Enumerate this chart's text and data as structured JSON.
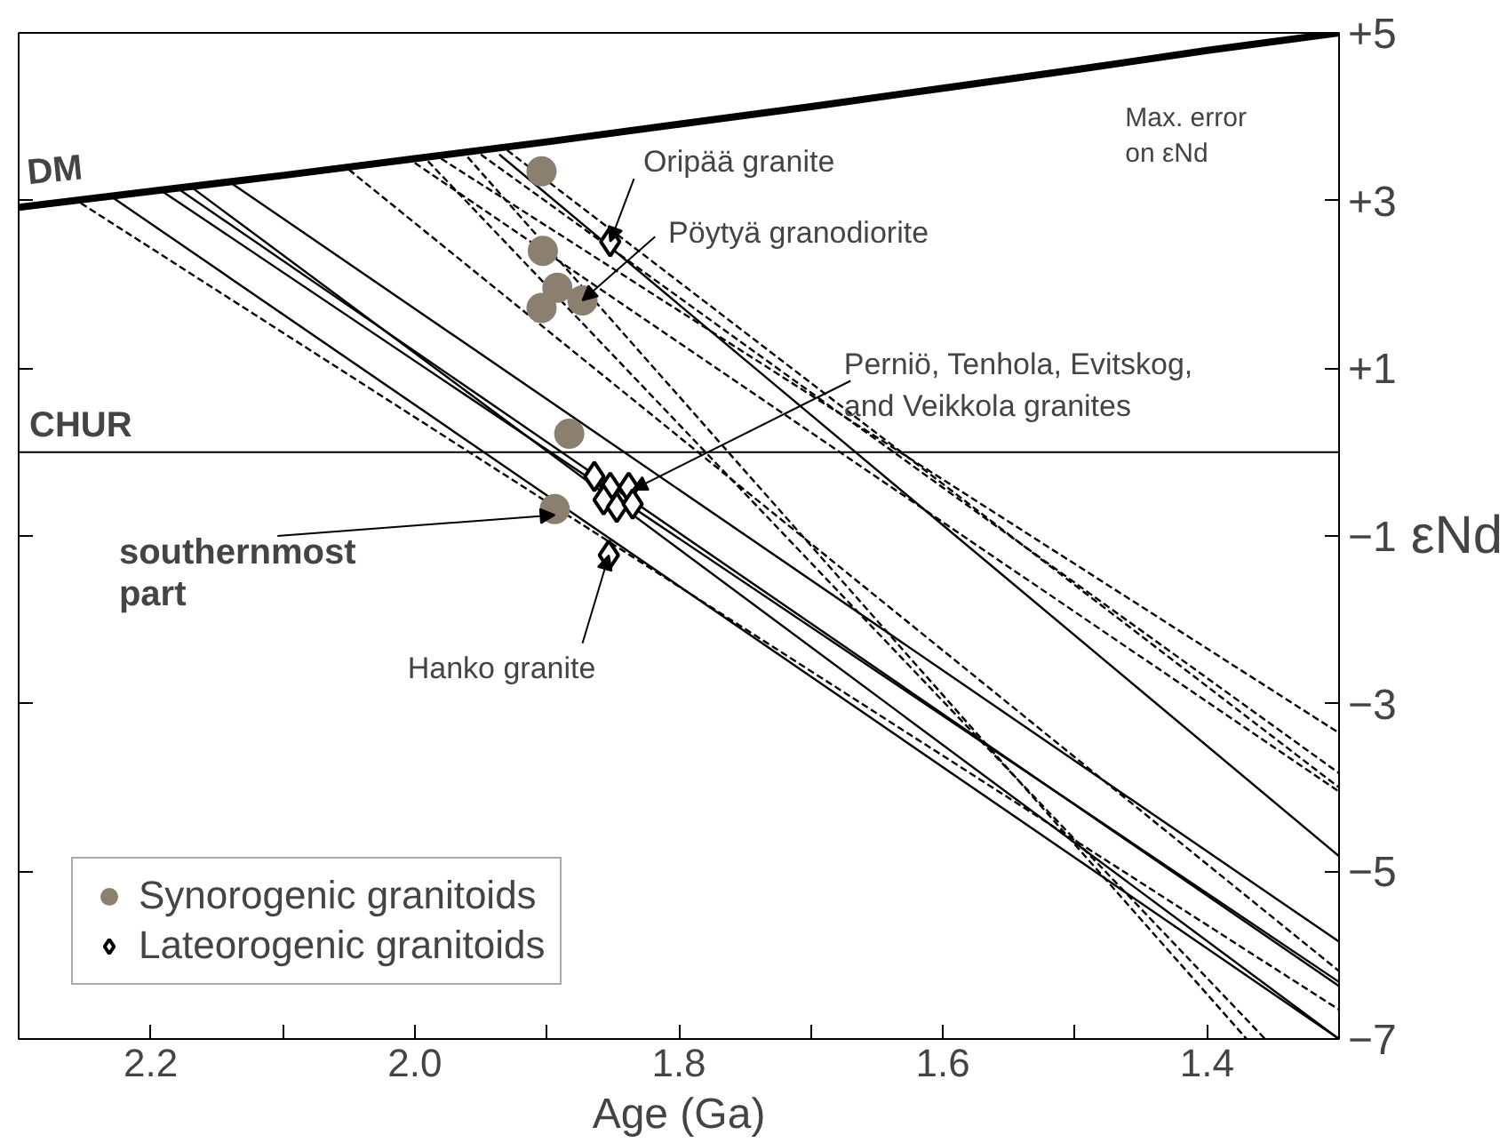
{
  "chart_data": {
    "type": "scatter",
    "xlabel": "Age (Ga)",
    "ylabel": "εNd",
    "xlim": [
      2.3,
      1.3
    ],
    "ylim": [
      -7,
      5
    ],
    "xticks": [
      {
        "value": 2.2,
        "label": "2.2"
      },
      {
        "value": 2.1,
        "label": null
      },
      {
        "value": 2.0,
        "label": "2.0"
      },
      {
        "value": 1.9,
        "label": null
      },
      {
        "value": 1.8,
        "label": "1.8"
      },
      {
        "value": 1.7,
        "label": null
      },
      {
        "value": 1.6,
        "label": "1.6"
      },
      {
        "value": 1.5,
        "label": null
      },
      {
        "value": 1.4,
        "label": "1.4"
      }
    ],
    "yticks": [
      {
        "value": 5,
        "label": "+5"
      },
      {
        "value": 3,
        "label": "+3"
      },
      {
        "value": 1,
        "label": "+1"
      },
      {
        "value": -1,
        "label": "−1"
      },
      {
        "value": -3,
        "label": "−3"
      },
      {
        "value": -5,
        "label": "−5"
      },
      {
        "value": -7,
        "label": "−7"
      }
    ],
    "grid": false,
    "legend": "bottom left",
    "ref_lines": [
      {
        "axis": "y",
        "value": 0,
        "label": "CHUR",
        "color": "#000000"
      }
    ],
    "series": [
      {
        "name": "DM",
        "type": "line",
        "color": "#000000",
        "line_style": "solid",
        "x": [
          2.3,
          2.2,
          2.1,
          2.0,
          1.9,
          1.8,
          1.7,
          1.6,
          1.5,
          1.4,
          1.3
        ],
        "values": [
          2.92,
          3.11,
          3.3,
          3.5,
          3.7,
          3.91,
          4.12,
          4.34,
          4.56,
          4.79,
          5.0
        ]
      },
      {
        "type": "line",
        "color": "#000000",
        "line_style": "solid",
        "x": [
          1.936,
          1.3
        ],
        "values": [
          3.55,
          -4.82
        ]
      },
      {
        "type": "line",
        "color": "#000000",
        "line_style": "solid",
        "x": [
          2.193,
          1.3
        ],
        "values": [
          3.13,
          -6.32
        ]
      },
      {
        "type": "line",
        "color": "#000000",
        "line_style": "solid",
        "x": [
          2.18,
          1.3
        ],
        "values": [
          3.15,
          -6.37
        ]
      },
      {
        "type": "line",
        "color": "#000000",
        "line_style": "solid",
        "x": [
          2.14,
          1.3
        ],
        "values": [
          3.22,
          -5.84
        ]
      },
      {
        "type": "line",
        "color": "#000000",
        "line_style": "solid",
        "x": [
          2.17,
          1.3
        ],
        "values": [
          3.17,
          -7.0
        ]
      },
      {
        "type": "line",
        "color": "#000000",
        "line_style": "solid",
        "x": [
          2.23,
          1.3
        ],
        "values": [
          3.05,
          -7.0
        ]
      },
      {
        "type": "line",
        "color": "#000000",
        "line_style": "dashed",
        "x": [
          2.253,
          1.3
        ],
        "values": [
          2.97,
          -6.65
        ]
      },
      {
        "type": "line",
        "color": "#000000",
        "line_style": "dashed",
        "x": [
          2.05,
          1.3
        ],
        "values": [
          3.37,
          -6.19
        ]
      },
      {
        "type": "line",
        "color": "#000000",
        "line_style": "dashed",
        "x": [
          1.98,
          1.3
        ],
        "values": [
          3.5,
          -3.35
        ]
      },
      {
        "type": "line",
        "color": "#000000",
        "line_style": "dashed",
        "x": [
          1.95,
          1.3
        ],
        "values": [
          3.55,
          -3.83
        ]
      },
      {
        "type": "line",
        "color": "#000000",
        "line_style": "dashed",
        "x": [
          1.93,
          1.3
        ],
        "values": [
          3.6,
          -4.0
        ]
      },
      {
        "type": "line",
        "color": "#000000",
        "line_style": "dashed",
        "x": [
          2.0,
          1.3
        ],
        "values": [
          3.45,
          -4.05
        ]
      },
      {
        "type": "line",
        "color": "#000000",
        "line_style": "dashed",
        "x": [
          1.99,
          1.356
        ],
        "values": [
          3.47,
          -7.0
        ]
      },
      {
        "type": "line",
        "color": "#000000",
        "line_style": "dashed",
        "x": [
          1.96,
          1.37
        ],
        "values": [
          3.52,
          -7.0
        ]
      },
      {
        "name": "Synorogenic granitoids",
        "marker": "circle",
        "color": "#8b8070",
        "x": [
          1.904,
          1.903,
          1.892,
          1.904,
          1.873,
          1.883,
          1.894
        ],
        "values": [
          3.35,
          2.4,
          1.96,
          1.72,
          1.81,
          0.22,
          -0.68
        ]
      },
      {
        "name": "Lateorogenic granitoids",
        "marker": "diamond",
        "color": "#000000",
        "x": [
          1.852,
          1.864,
          1.852,
          1.838,
          1.857,
          1.847,
          1.835,
          1.853
        ],
        "values": [
          2.51,
          -0.29,
          -0.42,
          -0.42,
          -0.57,
          -0.66,
          -0.62,
          -1.23
        ]
      }
    ],
    "annotations": [
      {
        "text": "Oripää granite",
        "x": 1.852,
        "y": 2.51
      },
      {
        "text": "Pöytyä granodiorite",
        "x": 1.873,
        "y": 1.81
      },
      {
        "text": "Perniö, Tenhola, Evitskog,\nand Veikkola granites",
        "x": 1.835,
        "y": -0.45
      },
      {
        "text": "southernmost\npart",
        "x": 1.894,
        "y": -0.75
      },
      {
        "text": "Hanko granite",
        "x": 1.853,
        "y": -1.23
      },
      "Max. error\non εNd"
    ]
  }
}
